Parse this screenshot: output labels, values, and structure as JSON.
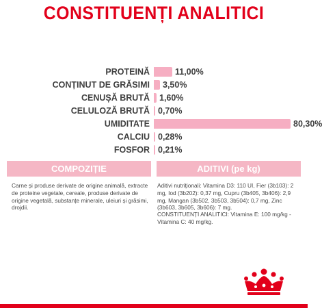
{
  "title": "CONSTITUENȚI ANALITICI",
  "nutrients": [
    {
      "label": "PROTEINĂ",
      "value": "11,00%",
      "percent": 11.0
    },
    {
      "label": "CONȚINUT DE GRĂSIMI",
      "value": "3,50%",
      "percent": 3.5
    },
    {
      "label": "CENUȘĂ BRUTĂ",
      "value": "1,60%",
      "percent": 1.6
    },
    {
      "label": "CELULOZĂ BRUTĂ",
      "value": "0,70%",
      "percent": 0.7
    },
    {
      "label": "UMIDITATE",
      "value": "80,30%",
      "percent": 80.3
    },
    {
      "label": "CALCIU",
      "value": "0,28%",
      "percent": 0.28
    },
    {
      "label": "FOSFOR",
      "value": "0,21%",
      "percent": 0.21
    }
  ],
  "composition": {
    "title": "COMPOZIȚIE",
    "text": "Carne și produse derivate de origine animală, extracte de proteine vegetale, cereale, produse derivate de origine vegetală, substanțe minerale, uleiuri și grăsimi, drojdii."
  },
  "additives": {
    "title": "ADITIVI (pe kg)",
    "text": "Aditivi nutriționali: Vitamina D3: 110 UI, Fier (3b103): 2 mg, Iod (3b202): 0,37 mg, Cupru (3b405, 3b406): 2,9 mg, Mangan (3b502, 3b503, 3b504): 0,7 mg, Zinc (3b603, 3b605, 3b606): 7 mg.",
    "text2": "CONSTITUENȚI ANALITICI: Vitamina E: 100 mg/kg - Vitamina C: 40 mg/kg."
  },
  "colors": {
    "accent": "#e2001a",
    "bar": "#f6aec2",
    "header_bg": "#f5b7c5"
  },
  "logo": "royal-canin-crown"
}
